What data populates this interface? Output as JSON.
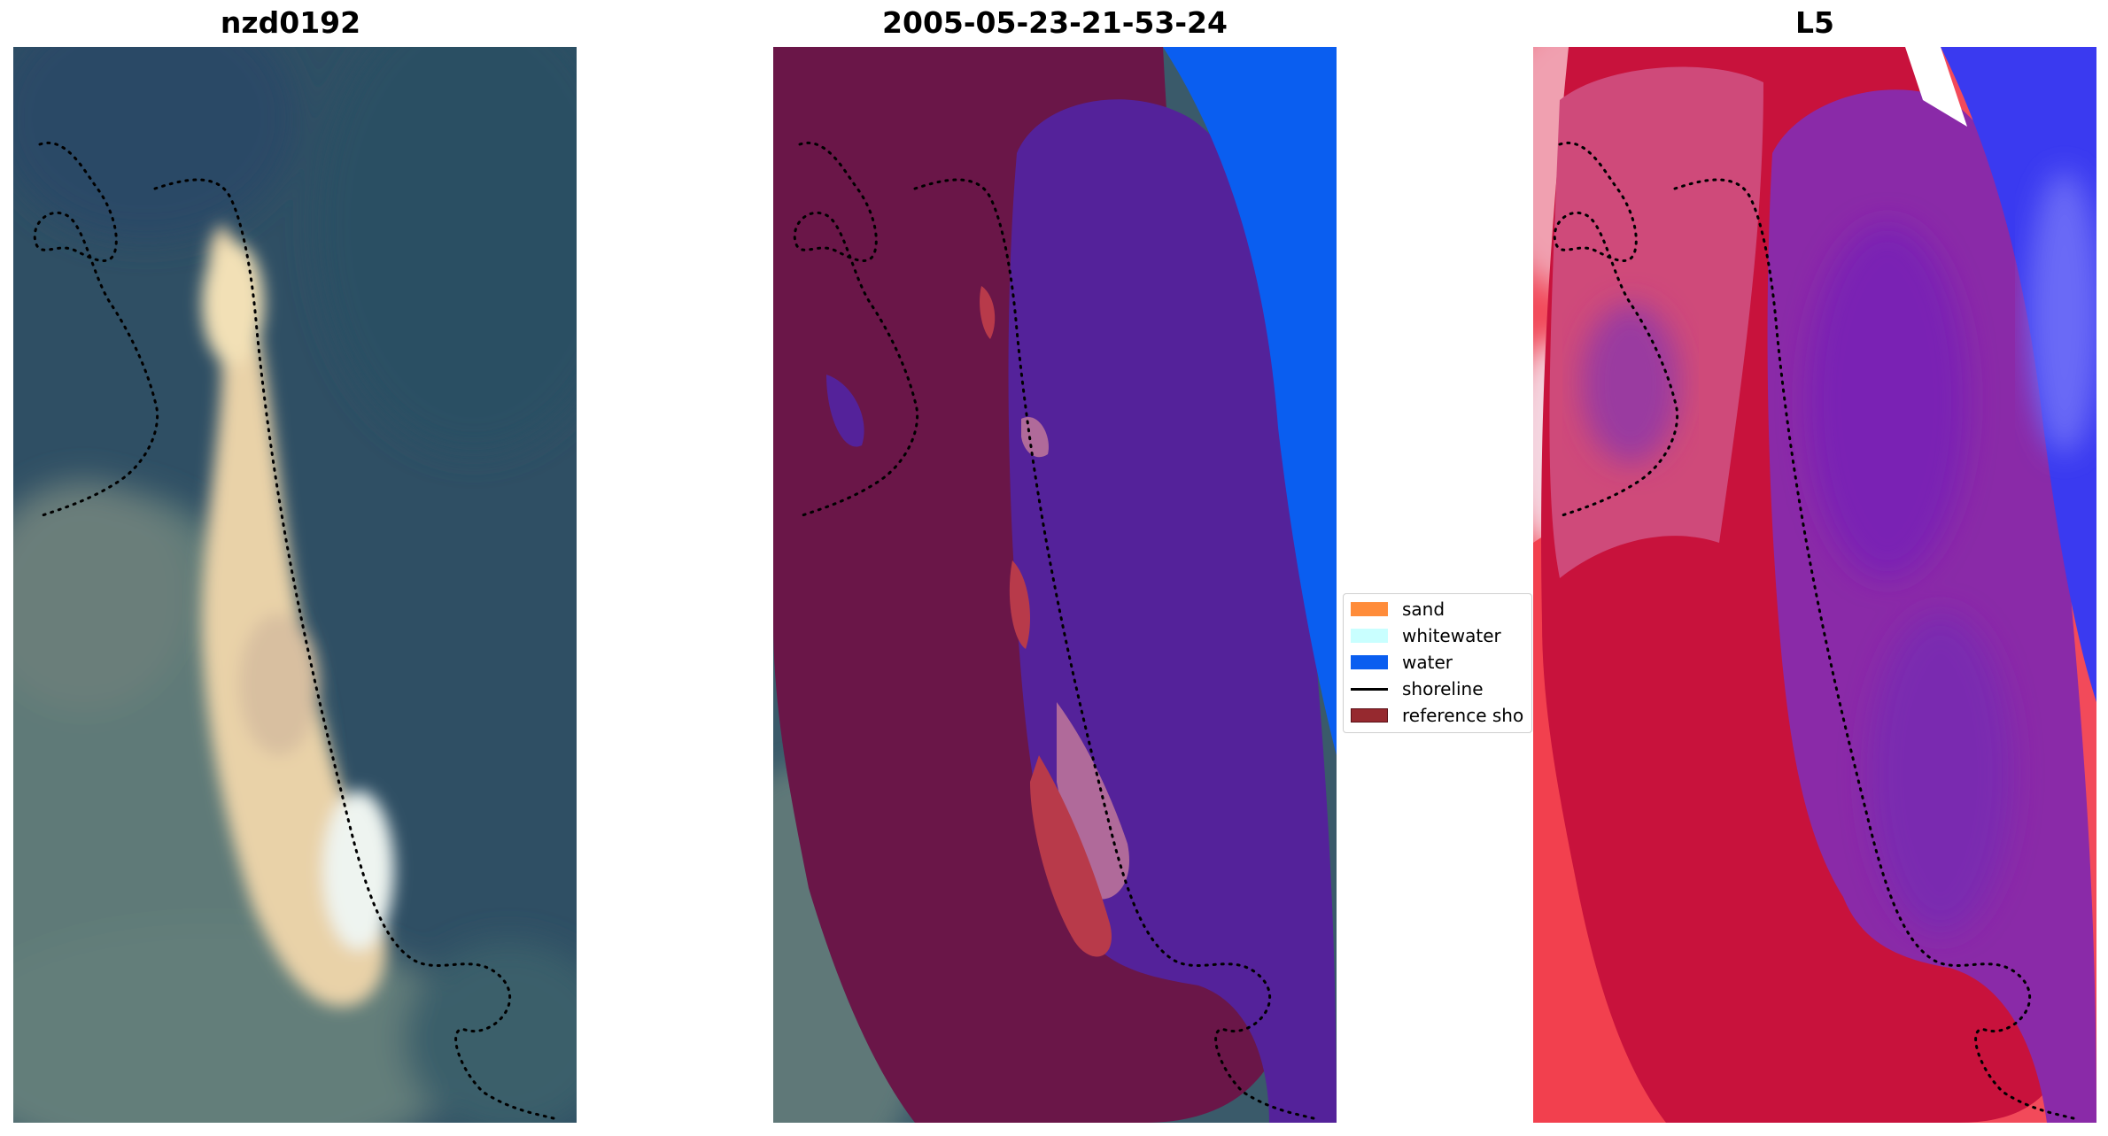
{
  "panels": [
    {
      "title": "nzd0192"
    },
    {
      "title": "2005-05-23-21-53-24"
    },
    {
      "title": "L5"
    }
  ],
  "legend": {
    "items": [
      {
        "label": "sand",
        "color": "#ff8c3a",
        "kind": "swatch"
      },
      {
        "label": "whitewater",
        "color": "#c9ffff",
        "kind": "swatch"
      },
      {
        "label": "water",
        "color": "#0a5ef0",
        "kind": "swatch"
      },
      {
        "label": "shoreline",
        "color": "#000000",
        "kind": "line"
      },
      {
        "label": "reference sho",
        "color": "#96292f",
        "kind": "swatch"
      }
    ]
  },
  "colors": {
    "deep_water": "#2d4e63",
    "reef_land": "#5f7a78",
    "sand_spit": "#f0d2a4",
    "mask_land": "#6a1648",
    "mask_water_purple": "#54229a",
    "mask_water_blue": "#0a5ef0",
    "index_red": "#c8123c",
    "index_purple": "#8a2aa8",
    "index_blue": "#3a3af0"
  }
}
